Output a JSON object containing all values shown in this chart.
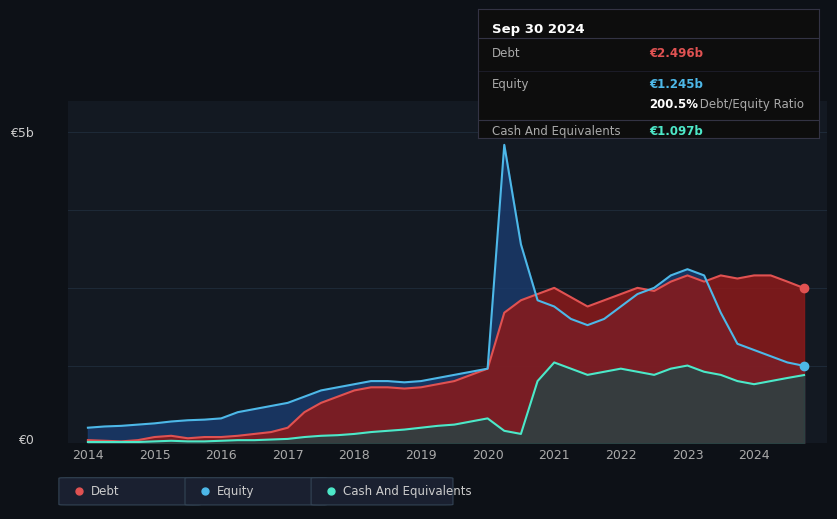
{
  "bg_color": "#0d1117",
  "plot_bg_color": "#131922",
  "grid_color": "#1e2a38",
  "ylabel_text": "€5b",
  "y0_text": "€0",
  "ylim": [
    0,
    5.5
  ],
  "years": [
    2014.0,
    2014.25,
    2014.5,
    2014.75,
    2015.0,
    2015.25,
    2015.5,
    2015.75,
    2016.0,
    2016.25,
    2016.5,
    2016.75,
    2017.0,
    2017.25,
    2017.5,
    2017.75,
    2018.0,
    2018.25,
    2018.5,
    2018.75,
    2019.0,
    2019.25,
    2019.5,
    2019.75,
    2020.0,
    2020.25,
    2020.5,
    2020.75,
    2021.0,
    2021.25,
    2021.5,
    2021.75,
    2022.0,
    2022.25,
    2022.5,
    2022.75,
    2023.0,
    2023.25,
    2023.5,
    2023.75,
    2024.0,
    2024.25,
    2024.5,
    2024.75
  ],
  "debt": [
    0.05,
    0.04,
    0.03,
    0.05,
    0.1,
    0.12,
    0.08,
    0.1,
    0.1,
    0.12,
    0.15,
    0.18,
    0.25,
    0.5,
    0.65,
    0.75,
    0.85,
    0.9,
    0.9,
    0.88,
    0.9,
    0.95,
    1.0,
    1.1,
    1.2,
    2.1,
    2.3,
    2.4,
    2.5,
    2.35,
    2.2,
    2.3,
    2.4,
    2.5,
    2.45,
    2.6,
    2.7,
    2.6,
    2.7,
    2.65,
    2.7,
    2.7,
    2.6,
    2.496
  ],
  "equity": [
    0.25,
    0.27,
    0.28,
    0.3,
    0.32,
    0.35,
    0.37,
    0.38,
    0.4,
    0.5,
    0.55,
    0.6,
    0.65,
    0.75,
    0.85,
    0.9,
    0.95,
    1.0,
    1.0,
    0.98,
    1.0,
    1.05,
    1.1,
    1.15,
    1.2,
    4.8,
    3.2,
    2.3,
    2.2,
    2.0,
    1.9,
    2.0,
    2.2,
    2.4,
    2.5,
    2.7,
    2.8,
    2.7,
    2.1,
    1.6,
    1.5,
    1.4,
    1.3,
    1.245
  ],
  "cash": [
    0.02,
    0.02,
    0.02,
    0.02,
    0.03,
    0.04,
    0.03,
    0.03,
    0.04,
    0.05,
    0.05,
    0.06,
    0.07,
    0.1,
    0.12,
    0.13,
    0.15,
    0.18,
    0.2,
    0.22,
    0.25,
    0.28,
    0.3,
    0.35,
    0.4,
    0.2,
    0.15,
    1.0,
    1.3,
    1.2,
    1.1,
    1.15,
    1.2,
    1.15,
    1.1,
    1.2,
    1.25,
    1.15,
    1.1,
    1.0,
    0.95,
    1.0,
    1.05,
    1.097
  ],
  "debt_color": "#e05252",
  "equity_color": "#4db8e8",
  "cash_color": "#4de8c8",
  "debt_fill": "#8b1a1a",
  "equity_fill": "#1a3a6b",
  "cash_fill": "#1a4a4a",
  "tooltip_bg": "#0d0d0d",
  "tooltip_title": "Sep 30 2024",
  "tooltip_debt_label": "Debt",
  "tooltip_debt_value": "€2.496b",
  "tooltip_equity_label": "Equity",
  "tooltip_equity_value": "€1.245b",
  "tooltip_ratio": "200.5%",
  "tooltip_ratio_text": " Debt/Equity Ratio",
  "tooltip_cash_label": "Cash And Equivalents",
  "tooltip_cash_value": "€1.097b",
  "legend_debt": "Debt",
  "legend_equity": "Equity",
  "legend_cash": "Cash And Equivalents"
}
